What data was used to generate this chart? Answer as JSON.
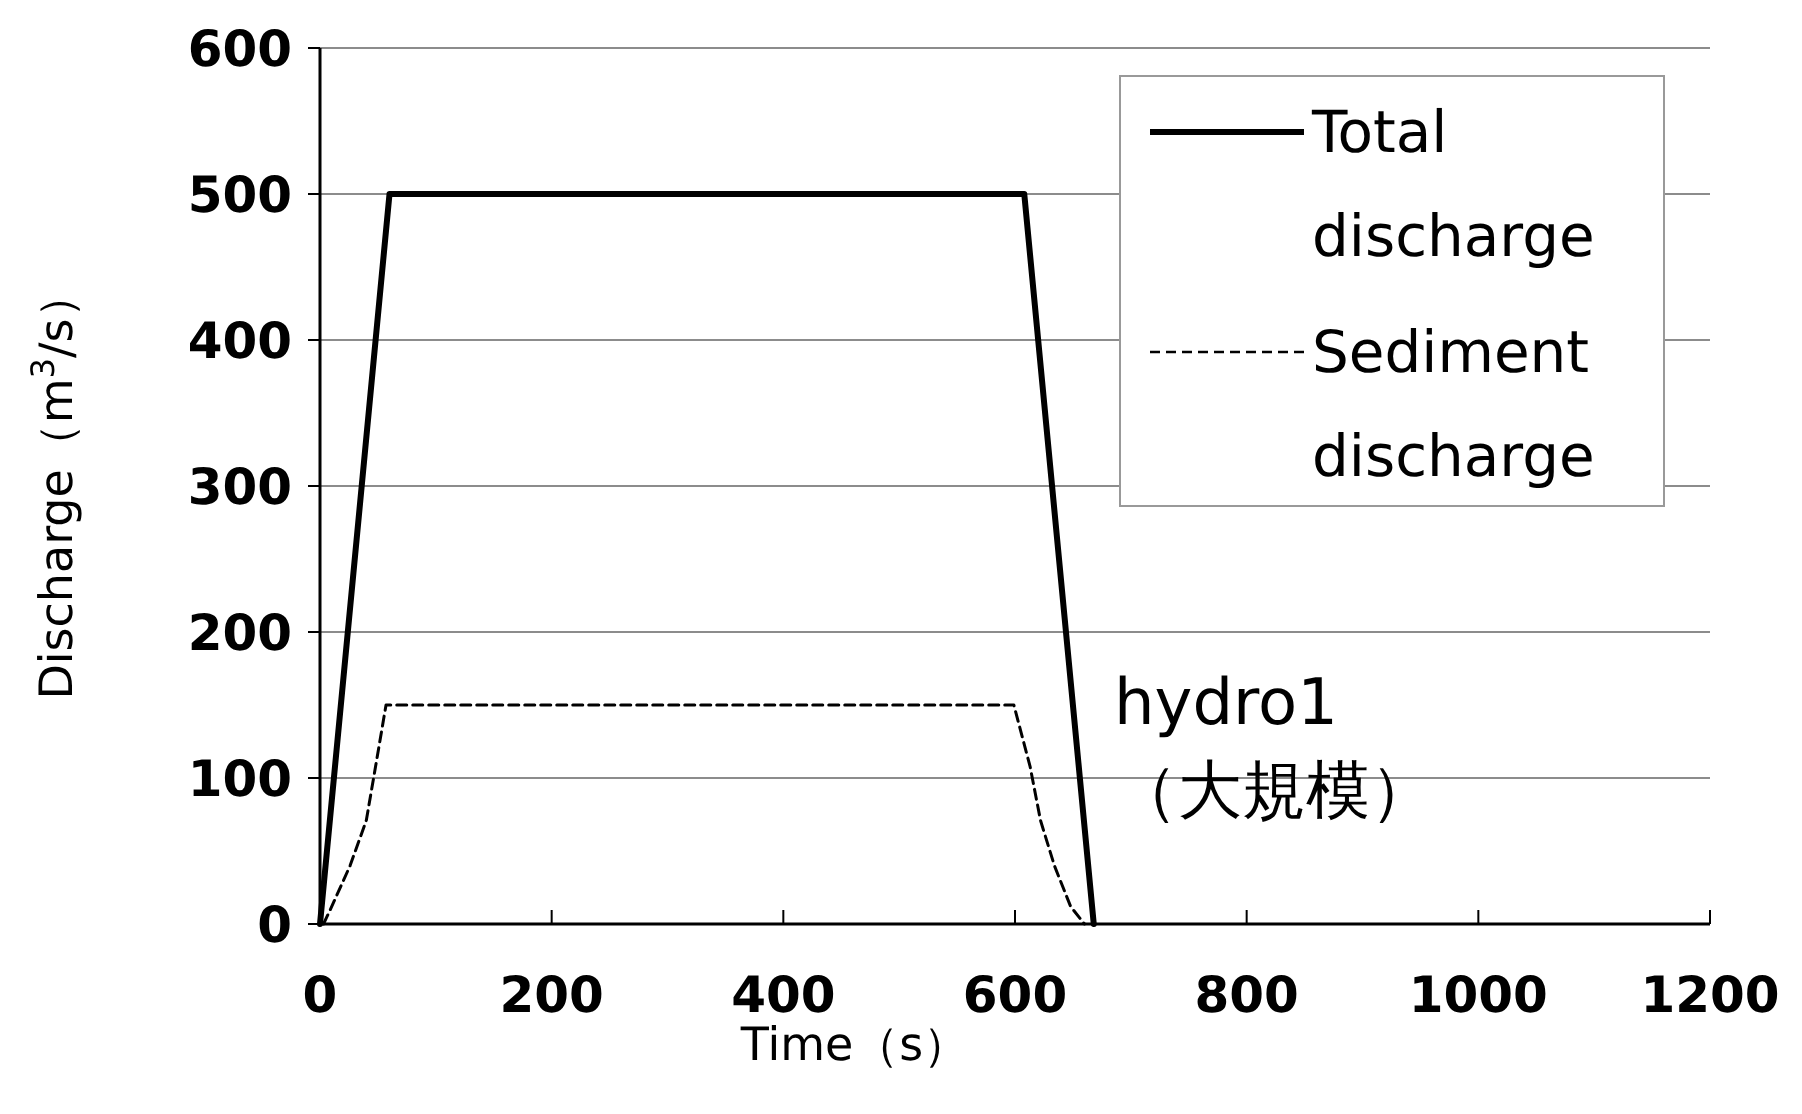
{
  "chart_data": {
    "type": "line",
    "xlabel": "Time（s）",
    "ylabel": "Discharge（m$^{3}$/s）",
    "xlim": [
      0,
      1200
    ],
    "xticks": [
      0,
      200,
      400,
      600,
      800,
      1000,
      1200
    ],
    "ylim": [
      0,
      600
    ],
    "yticks": [
      0,
      100,
      200,
      300,
      400,
      500,
      600
    ],
    "grid": "y",
    "legend": "top right",
    "marker": "none",
    "series": [
      {
        "name": "Total discharge",
        "color": "#000000",
        "line_style": "solid",
        "x": [
          0,
          60,
          608,
          668
        ],
        "values": [
          0,
          500,
          500,
          0
        ]
      },
      {
        "name": "Sediment discharge",
        "color": "#000000",
        "line_style": "dashed",
        "x": [
          3,
          9,
          26,
          40,
          48,
          57,
          599,
          613,
          622,
          634,
          648,
          660
        ],
        "values": [
          0,
          10,
          40,
          71,
          108,
          150,
          150,
          108,
          71,
          40,
          12,
          0
        ]
      }
    ],
    "annotations": [
      "hydro1\n（大規模）"
    ]
  }
}
